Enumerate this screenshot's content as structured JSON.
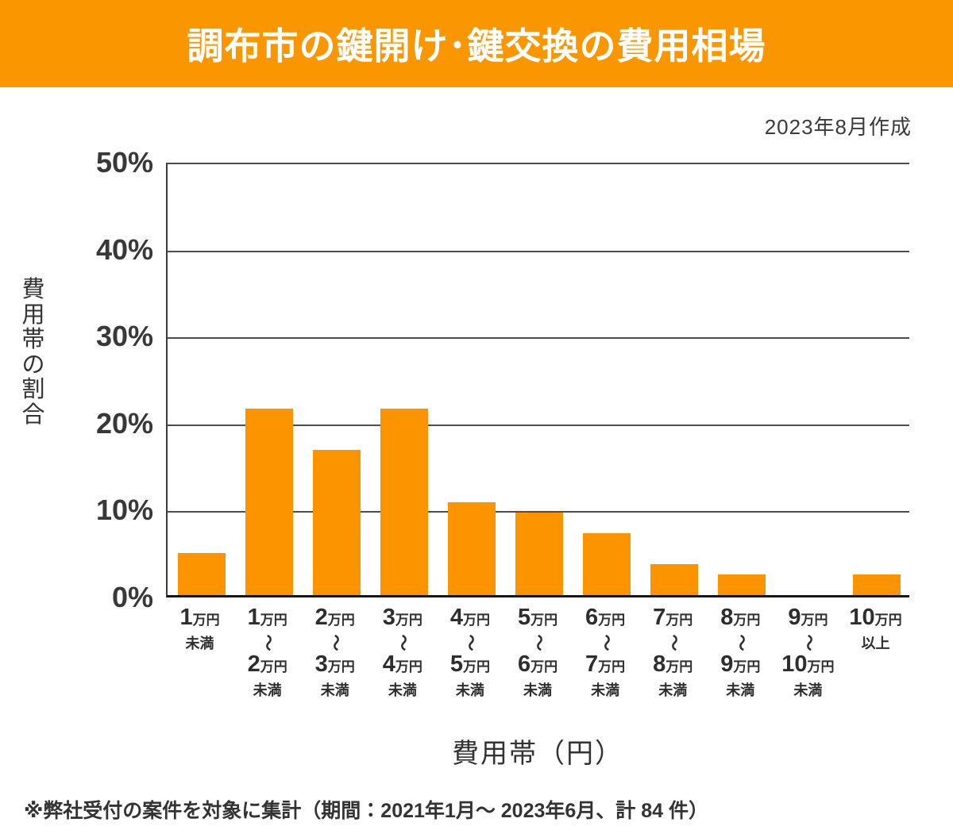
{
  "header": {
    "title": "調布市の鍵開け･鍵交換の費用相場",
    "bg_color": "#FA9600",
    "text_color": "#FFFFFF"
  },
  "meta": {
    "created_label": "2023年8月作成"
  },
  "chart_data": {
    "type": "bar",
    "title": "調布市の鍵開け･鍵交換の費用相場",
    "xlabel": "費用帯（円）",
    "ylabel": "費用帯の割合",
    "ylim": [
      0,
      50
    ],
    "ytick_labels": [
      "50%",
      "40%",
      "30%",
      "20%",
      "10%",
      "0%"
    ],
    "grid": true,
    "legend": "none",
    "bar_color": "#FC9400",
    "wave_symbol": "〜",
    "categories": [
      {
        "num1": "1",
        "unit1": "万円",
        "num2": "",
        "unit2": "",
        "tail": "未満"
      },
      {
        "num1": "1",
        "unit1": "万円",
        "num2": "2",
        "unit2": "万円",
        "tail": "未満"
      },
      {
        "num1": "2",
        "unit1": "万円",
        "num2": "3",
        "unit2": "万円",
        "tail": "未満"
      },
      {
        "num1": "3",
        "unit1": "万円",
        "num2": "4",
        "unit2": "万円",
        "tail": "未満"
      },
      {
        "num1": "4",
        "unit1": "万円",
        "num2": "5",
        "unit2": "万円",
        "tail": "未満"
      },
      {
        "num1": "5",
        "unit1": "万円",
        "num2": "6",
        "unit2": "万円",
        "tail": "未満"
      },
      {
        "num1": "6",
        "unit1": "万円",
        "num2": "7",
        "unit2": "万円",
        "tail": "未満"
      },
      {
        "num1": "7",
        "unit1": "万円",
        "num2": "8",
        "unit2": "万円",
        "tail": "未満"
      },
      {
        "num1": "8",
        "unit1": "万円",
        "num2": "9",
        "unit2": "万円",
        "tail": "未満"
      },
      {
        "num1": "9",
        "unit1": "万円",
        "num2": "10",
        "unit2": "万円",
        "tail": "未満"
      },
      {
        "num1": "10",
        "unit1": "万円",
        "num2": "",
        "unit2": "",
        "tail": "以上"
      }
    ],
    "values": [
      4.8,
      21.4,
      16.7,
      21.4,
      10.7,
      9.5,
      7.1,
      3.6,
      2.4,
      0,
      2.4
    ]
  },
  "footnote": {
    "text": "※弊社受付の案件を対象に集計（期間：2021年1月～ 2023年6月、計 84 件）"
  }
}
